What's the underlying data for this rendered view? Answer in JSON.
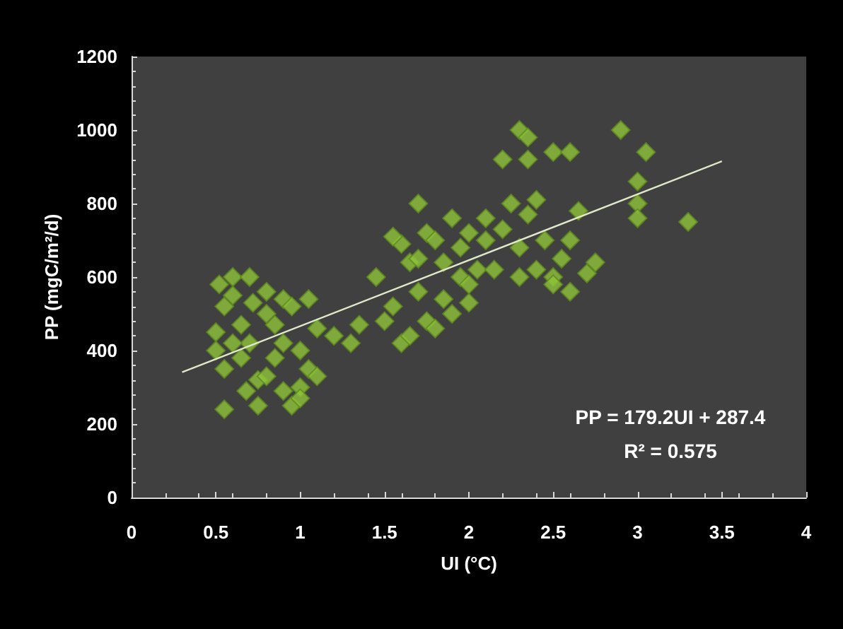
{
  "chart_data": {
    "type": "scatter",
    "xlabel": "UI (°C)",
    "ylabel": "PP (mgC/m²/d)",
    "xlim": [
      0,
      4
    ],
    "xticks": [
      0,
      0.5,
      1,
      1.5,
      2,
      2.5,
      3,
      3.5,
      4
    ],
    "ylim": [
      0,
      1200
    ],
    "yticks": [
      0,
      200,
      400,
      600,
      800,
      1000,
      1200
    ],
    "grid": false,
    "marker": "diamond",
    "annotations": [
      "PP = 179.2UI + 287.4",
      "R² = 0.575"
    ],
    "series": [
      {
        "color": "#8fc33a",
        "x": [
          0.52,
          0.6,
          0.55,
          0.5,
          0.5,
          0.55,
          0.55,
          0.6,
          0.65,
          0.7,
          0.7,
          0.75,
          0.75,
          0.8,
          0.8,
          0.65,
          0.85,
          0.85,
          0.9,
          0.9,
          0.95,
          0.95,
          1.0,
          1.0,
          1.05,
          1.05,
          1.1,
          1.1,
          0.72,
          0.6,
          0.9,
          0.8,
          1.0,
          0.68,
          1.2,
          1.3,
          1.35,
          1.45,
          1.5,
          1.55,
          1.6,
          1.6,
          1.65,
          1.7,
          1.7,
          1.75,
          1.75,
          1.8,
          1.85,
          1.85,
          1.9,
          1.9,
          1.95,
          2.0,
          2.0,
          2.05,
          2.1,
          2.1,
          1.55,
          1.65,
          1.8,
          1.95,
          1.7,
          2.0,
          2.2,
          2.3,
          2.35,
          2.35,
          2.5,
          2.6,
          2.9,
          3.05,
          3.0,
          3.0,
          3.0,
          3.3,
          2.25,
          2.3,
          2.35,
          2.4,
          2.4,
          2.45,
          2.5,
          2.55,
          2.6,
          2.6,
          2.65,
          2.7,
          2.75,
          2.2,
          2.15,
          2.3,
          2.5
        ],
        "values": [
          580,
          600,
          520,
          450,
          400,
          350,
          240,
          550,
          470,
          600,
          420,
          320,
          250,
          500,
          560,
          380,
          380,
          470,
          290,
          540,
          250,
          520,
          300,
          400,
          540,
          350,
          330,
          460,
          530,
          420,
          420,
          330,
          270,
          290,
          440,
          420,
          470,
          600,
          480,
          520,
          420,
          690,
          640,
          800,
          560,
          720,
          480,
          700,
          540,
          640,
          760,
          500,
          680,
          720,
          530,
          620,
          760,
          700,
          710,
          440,
          460,
          600,
          650,
          580,
          920,
          1000,
          980,
          920,
          940,
          940,
          1000,
          940,
          860,
          800,
          760,
          750,
          800,
          680,
          770,
          810,
          620,
          700,
          600,
          650,
          560,
          700,
          780,
          610,
          640,
          730,
          620,
          600,
          580
        ]
      },
      {
        "type": "line",
        "color": "#dfe8c8",
        "marker": "none",
        "x": [
          0.3,
          3.5
        ],
        "values": [
          341,
          915
        ]
      }
    ]
  }
}
